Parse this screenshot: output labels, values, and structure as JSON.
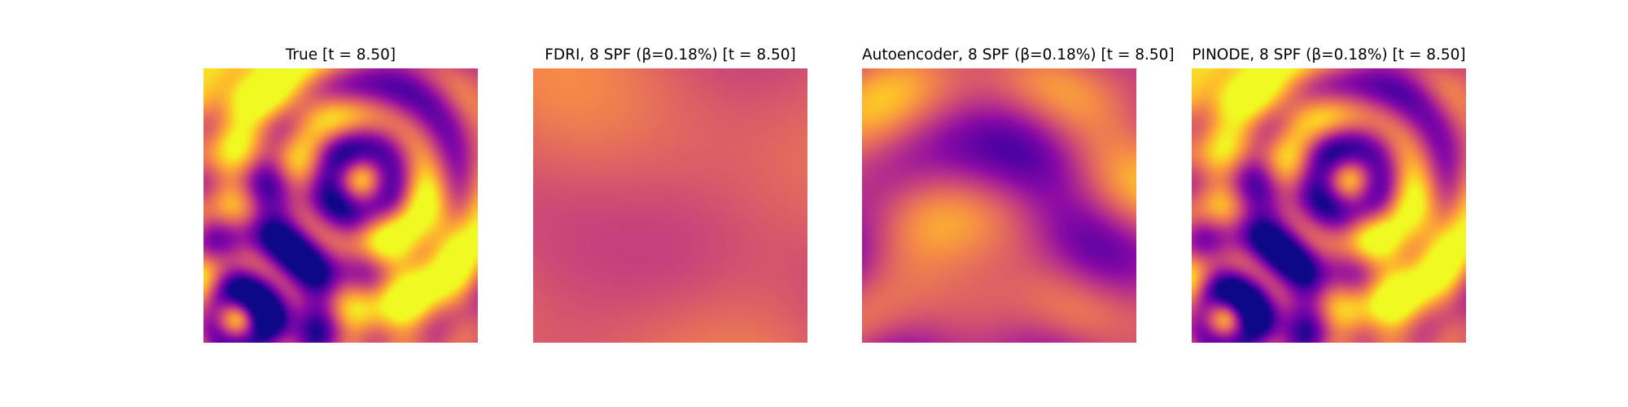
{
  "figure": {
    "colormap": "plasma",
    "colormap_stops": [
      "#0d0887",
      "#5302a3",
      "#8b0aa5",
      "#b83289",
      "#db5c68",
      "#f48849",
      "#febd2a",
      "#f0f921"
    ]
  },
  "chart_data": [
    {
      "type": "heatmap",
      "title": "True [t = 8.50]",
      "pattern": "true",
      "grid": false,
      "axes": "off"
    },
    {
      "type": "heatmap",
      "title": "FDRI, 8 SPF (β=0.18%) [t = 8.50]",
      "pattern": "fdri",
      "grid": false,
      "axes": "off"
    },
    {
      "type": "heatmap",
      "title": "Autoencoder, 8 SPF (β=0.18%) [t = 8.50]",
      "pattern": "autoencoder",
      "grid": false,
      "axes": "off"
    },
    {
      "type": "heatmap",
      "title": "PINODE, 8 SPF (β=0.18%) [t = 8.50]",
      "pattern": "pinode",
      "grid": false,
      "axes": "off"
    }
  ]
}
